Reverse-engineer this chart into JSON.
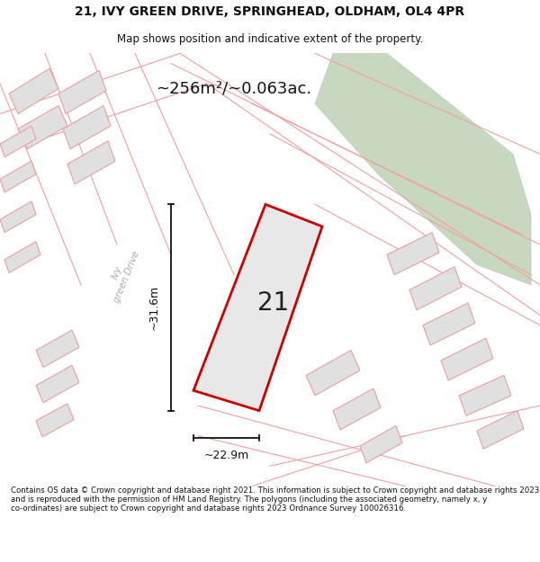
{
  "title_line1": "21, IVY GREEN DRIVE, SPRINGHEAD, OLDHAM, OL4 4PR",
  "title_line2": "Map shows position and indicative extent of the property.",
  "area_text": "~256m²/~0.063ac.",
  "label_number": "21",
  "dim_width": "~22.9m",
  "dim_height": "~31.6m",
  "road_label": "Ivy\ngreen Drive",
  "footer": "Contains OS data © Crown copyright and database right 2021. This information is subject to Crown copyright and database rights 2023 and is reproduced with the permission of HM Land Registry. The polygons (including the associated geometry, namely x, y co-ordinates) are subject to Crown copyright and database rights 2023 Ordnance Survey 100026316.",
  "bg_color": "#ffffff",
  "map_bg": "#ffffff",
  "plot_fill": "#e8e8e8",
  "plot_edge": "#cc0000",
  "neighbor_fill": "#e0e0e0",
  "neighbor_edge": "#e8a0a0",
  "lot_line_color": "#f0a0a0",
  "green_fill": "#c8d8c0",
  "green_edge": "#b8ccb8",
  "dim_line_color": "#111111",
  "text_color": "#111111",
  "road_text_color": "#aaaaaa"
}
